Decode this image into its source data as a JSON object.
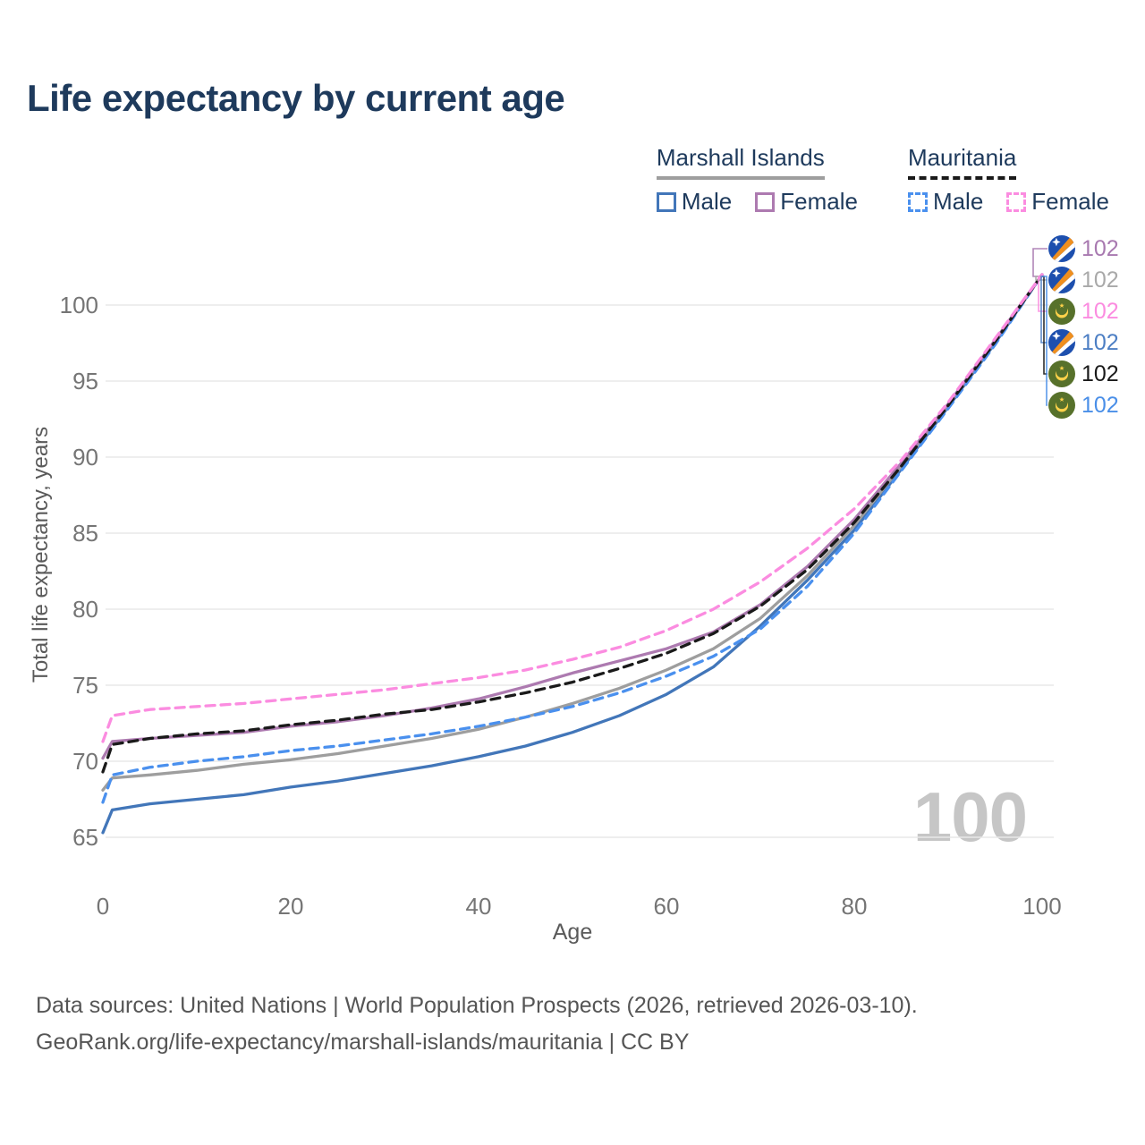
{
  "title": "Life expectancy by current age",
  "watermark": "100",
  "legend": {
    "groups": [
      {
        "label": "Marshall Islands",
        "line_style": "solid",
        "line_color": "#9e9e9e",
        "items": [
          {
            "label": "Male",
            "color": "#4276b9",
            "dash": false
          },
          {
            "label": "Female",
            "color": "#ad7ab0",
            "dash": false
          }
        ]
      },
      {
        "label": "Mauritania",
        "line_style": "dashed",
        "line_color": "#1a1a1a",
        "items": [
          {
            "label": "Male",
            "color": "#4a90ee",
            "dash": true
          },
          {
            "label": "Female",
            "color": "#fb8ce0",
            "dash": true
          }
        ]
      }
    ]
  },
  "chart_data": {
    "type": "line",
    "title": "Life expectancy by current age",
    "xlabel": "Age",
    "ylabel": "Total life expectancy, years",
    "xlim": [
      0,
      100
    ],
    "ylim": [
      63.5,
      103.5
    ],
    "xticks": [
      0,
      20,
      40,
      60,
      80,
      100
    ],
    "yticks": [
      65,
      70,
      75,
      80,
      85,
      90,
      95,
      100
    ],
    "grid": "horizontal",
    "legend_position": "top-right",
    "x": [
      0,
      1,
      5,
      10,
      15,
      20,
      25,
      30,
      35,
      40,
      45,
      50,
      55,
      60,
      65,
      70,
      75,
      80,
      85,
      90,
      95,
      100
    ],
    "series": [
      {
        "name": "Marshall Islands Male",
        "color": "#4276b9",
        "dash": "solid",
        "values": [
          65.3,
          66.8,
          67.2,
          67.5,
          67.8,
          68.3,
          68.7,
          69.2,
          69.7,
          70.3,
          71.0,
          71.9,
          73.0,
          74.4,
          76.2,
          78.9,
          81.9,
          85.2,
          89.2,
          93.3,
          97.5,
          102
        ]
      },
      {
        "name": "Marshall Islands Both sexes",
        "color": "#9e9e9e",
        "dash": "solid",
        "values": [
          68.1,
          68.9,
          69.1,
          69.4,
          69.8,
          70.1,
          70.5,
          71.0,
          71.5,
          72.1,
          72.9,
          73.8,
          74.8,
          76.0,
          77.4,
          79.4,
          82.2,
          85.5,
          89.4,
          93.4,
          97.6,
          102
        ]
      },
      {
        "name": "Mauritania Male",
        "color": "#4a90ee",
        "dash": "dashed",
        "values": [
          67.3,
          69.1,
          69.6,
          70.0,
          70.3,
          70.7,
          71.0,
          71.4,
          71.8,
          72.3,
          72.9,
          73.6,
          74.5,
          75.6,
          76.9,
          78.7,
          81.5,
          85.0,
          89.1,
          93.2,
          97.4,
          102
        ]
      },
      {
        "name": "Marshall Islands Female",
        "color": "#ad7ab0",
        "dash": "solid",
        "values": [
          70.2,
          71.3,
          71.5,
          71.7,
          71.9,
          72.3,
          72.6,
          73.0,
          73.5,
          74.1,
          74.9,
          75.8,
          76.6,
          77.4,
          78.5,
          80.3,
          82.8,
          85.9,
          89.6,
          93.5,
          97.7,
          102
        ]
      },
      {
        "name": "Mauritania Both sexes",
        "color": "#1a1a1a",
        "dash": "dashed",
        "values": [
          69.3,
          71.1,
          71.5,
          71.8,
          72.0,
          72.4,
          72.7,
          73.1,
          73.4,
          73.9,
          74.5,
          75.2,
          76.1,
          77.1,
          78.4,
          80.2,
          82.6,
          85.7,
          89.4,
          93.4,
          97.6,
          102
        ]
      },
      {
        "name": "Mauritania Female",
        "color": "#fb8ce0",
        "dash": "dashed",
        "values": [
          71.3,
          73.0,
          73.4,
          73.6,
          73.8,
          74.1,
          74.4,
          74.7,
          75.1,
          75.5,
          76.0,
          76.7,
          77.5,
          78.6,
          80.0,
          81.8,
          84.0,
          86.6,
          89.8,
          93.6,
          97.8,
          102
        ]
      }
    ]
  },
  "endpoint_labels": {
    "rows": [
      {
        "flag": "marshall-islands",
        "value": "102",
        "color": "#a879b0"
      },
      {
        "flag": "marshall-islands",
        "value": "102",
        "color": "#a9a9a9"
      },
      {
        "flag": "mauritania",
        "value": "102",
        "color": "#fb8ce0"
      },
      {
        "flag": "marshall-islands",
        "value": "102",
        "color": "#4d7fc4"
      },
      {
        "flag": "mauritania",
        "value": "102",
        "color": "#1a1a1a"
      },
      {
        "flag": "mauritania",
        "value": "102",
        "color": "#4a8fe8"
      }
    ]
  },
  "footer": {
    "line1": "Data sources: United Nations | World Population Prospects (2026, retrieved 2026-03-10).",
    "line2": "GeoRank.org/life-expectancy/marshall-islands/mauritania | CC BY"
  }
}
